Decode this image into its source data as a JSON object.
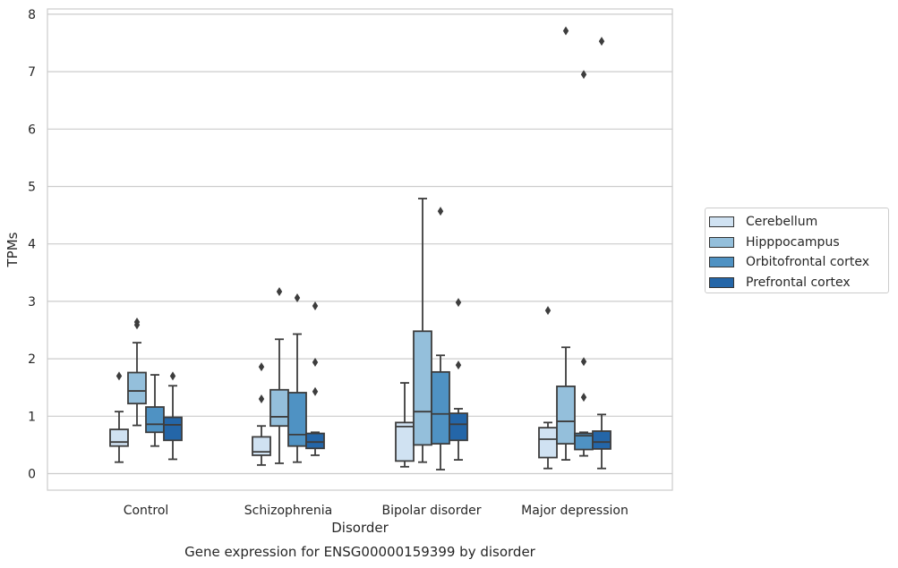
{
  "chart_data": {
    "type": "box",
    "title": "Gene expression for ENSG00000159399 by disorder",
    "xlabel": "Disorder",
    "ylabel": "TPMs",
    "ylim": [
      -0.3,
      8.1
    ],
    "yticks": [
      0,
      1,
      2,
      3,
      4,
      5,
      6,
      7,
      8
    ],
    "grid": true,
    "legend_position": "right",
    "categories": [
      "Control",
      "Schizophrenia",
      "Bipolar disorder",
      "Major depression"
    ],
    "series": [
      {
        "name": "Cerebellum",
        "color": "#d0e2f2",
        "boxes": [
          {
            "whislo": 0.2,
            "q1": 0.48,
            "med": 0.55,
            "q3": 0.77,
            "whishi": 1.08,
            "fliers": [
              1.7
            ]
          },
          {
            "whislo": 0.15,
            "q1": 0.32,
            "med": 0.38,
            "q3": 0.64,
            "whishi": 0.83,
            "fliers": [
              1.3,
              1.86
            ]
          },
          {
            "whislo": 0.12,
            "q1": 0.22,
            "med": 0.82,
            "q3": 0.89,
            "whishi": 1.58,
            "fliers": []
          },
          {
            "whislo": 0.09,
            "q1": 0.28,
            "med": 0.6,
            "q3": 0.8,
            "whishi": 0.89,
            "fliers": [
              2.84
            ]
          }
        ]
      },
      {
        "name": "Hipppocampus",
        "color": "#94bfdb",
        "boxes": [
          {
            "whislo": 0.84,
            "q1": 1.22,
            "med": 1.44,
            "q3": 1.76,
            "whishi": 2.28,
            "fliers": [
              2.59,
              2.64
            ]
          },
          {
            "whislo": 0.18,
            "q1": 0.83,
            "med": 0.99,
            "q3": 1.46,
            "whishi": 2.34,
            "fliers": [
              3.17
            ]
          },
          {
            "whislo": 0.2,
            "q1": 0.5,
            "med": 1.08,
            "q3": 2.48,
            "whishi": 4.79,
            "fliers": []
          },
          {
            "whislo": 0.24,
            "q1": 0.52,
            "med": 0.91,
            "q3": 1.52,
            "whishi": 2.2,
            "fliers": [
              7.71
            ]
          }
        ]
      },
      {
        "name": "Orbitofrontal cortex",
        "color": "#4f92c3",
        "boxes": [
          {
            "whislo": 0.48,
            "q1": 0.72,
            "med": 0.86,
            "q3": 1.16,
            "whishi": 1.72,
            "fliers": []
          },
          {
            "whislo": 0.2,
            "q1": 0.48,
            "med": 0.68,
            "q3": 1.41,
            "whishi": 2.43,
            "fliers": [
              3.06
            ]
          },
          {
            "whislo": 0.07,
            "q1": 0.52,
            "med": 1.04,
            "q3": 1.77,
            "whishi": 2.06,
            "fliers": [
              4.57
            ]
          },
          {
            "whislo": 0.31,
            "q1": 0.42,
            "med": 0.66,
            "q3": 0.7,
            "whishi": 0.72,
            "fliers": [
              1.33,
              1.95,
              6.95
            ]
          }
        ]
      },
      {
        "name": "Prefrontal cortex",
        "color": "#2466a8",
        "boxes": [
          {
            "whislo": 0.25,
            "q1": 0.58,
            "med": 0.85,
            "q3": 0.98,
            "whishi": 1.53,
            "fliers": [
              1.7
            ]
          },
          {
            "whislo": 0.32,
            "q1": 0.44,
            "med": 0.55,
            "q3": 0.7,
            "whishi": 0.72,
            "fliers": [
              1.43,
              1.94,
              2.92
            ]
          },
          {
            "whislo": 0.24,
            "q1": 0.58,
            "med": 0.86,
            "q3": 1.05,
            "whishi": 1.13,
            "fliers": [
              1.89,
              2.98
            ]
          },
          {
            "whislo": 0.09,
            "q1": 0.43,
            "med": 0.55,
            "q3": 0.74,
            "whishi": 1.03,
            "fliers": [
              7.53
            ]
          }
        ]
      }
    ]
  }
}
